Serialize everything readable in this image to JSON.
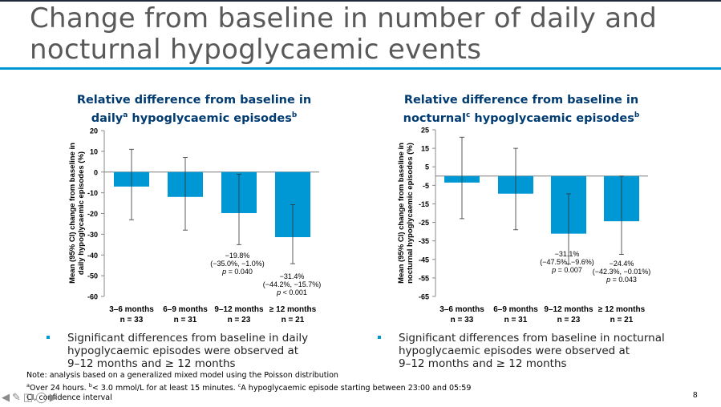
{
  "slide": {
    "title_line1": "Change from baseline in number of daily and",
    "title_line2": "nocturnal hypoglycaemic events",
    "page_number": "8",
    "colors": {
      "accent": "#0098d4",
      "title": "#595959",
      "chart_title": "#003b72"
    }
  },
  "charts": {
    "left": {
      "title_line1": "Relative difference from baseline in",
      "title_word": "daily",
      "title_sup1": "a",
      "title_rest": " hypoglycaemic episodes",
      "title_sup2": "b"
    },
    "right": {
      "title_line1": "Relative difference from baseline in",
      "title_word": "nocturnal",
      "title_sup1": "c",
      "title_rest": " hypoglycaemic episodes",
      "title_sup2": "b"
    }
  },
  "chart_data": [
    {
      "type": "bar",
      "title": "Relative difference from baseline in daily hypoglycaemic episodes",
      "ylabel_line1": "Mean (95% CI) change from baseline in",
      "ylabel_line2": "daily hypoglycaemic episodes (%)",
      "ylim": [
        -60,
        20
      ],
      "yticks": [
        "20",
        "10",
        "0",
        "-10",
        "-20",
        "-30",
        "-40",
        "-50",
        "-60"
      ],
      "categories": [
        "3–6 months",
        "6–9 months",
        "9–12 months",
        "≥ 12 months"
      ],
      "n_labels": [
        "n = 33",
        "n = 31",
        "n = 23",
        "n = 21"
      ],
      "values": [
        -7,
        -12,
        -19.8,
        -31.4
      ],
      "ci_low": [
        -23,
        -28,
        -35.0,
        -44.2
      ],
      "ci_high": [
        11,
        7,
        -1.0,
        -15.7
      ],
      "annotations": [
        null,
        null,
        {
          "value": "−19.8%",
          "ci": "(−35.0%, −1.0%)",
          "p_label": "p",
          "p_text": " = 0.040"
        },
        {
          "value": "−31.4%",
          "ci": "(−44.2%, −15.7%)",
          "p_label": "p",
          "p_text": " < 0.001"
        }
      ],
      "bar_color": "#0098d4",
      "grid": false
    },
    {
      "type": "bar",
      "title": "Relative difference from baseline in nocturnal hypoglycaemic episodes",
      "ylabel_line1": "Mean (95% CI) change from baseline in",
      "ylabel_line2": "nocturnal hypoglycaemic episodes (%)",
      "ylim": [
        -65,
        25
      ],
      "yticks": [
        "25",
        "15",
        "5",
        "-5",
        "-15",
        "-25",
        "-35",
        "-45",
        "-55",
        "-65"
      ],
      "categories": [
        "3–6 months",
        "6–9 months",
        "9–12 months",
        "≥ 12 months"
      ],
      "n_labels": [
        "n = 33",
        "n = 31",
        "n = 23",
        "n = 21"
      ],
      "values": [
        -3.5,
        -9.5,
        -31.1,
        -24.4
      ],
      "ci_low": [
        -23,
        -29,
        -47.5,
        -42.3
      ],
      "ci_high": [
        21,
        15,
        -9.6,
        -0.01
      ],
      "annotations": [
        null,
        null,
        {
          "value": "−31.1%",
          "ci": "(−47.5%, −9.6%)",
          "p_label": "p",
          "p_text": " = 0.007"
        },
        {
          "value": "−24.4%",
          "ci": "(−42.3%, −0.01%)",
          "p_label": "p",
          "p_text": " = 0.043"
        }
      ],
      "bar_color": "#0098d4",
      "grid": false
    }
  ],
  "bullets": {
    "left": [
      "Significant differences from baseline in daily",
      "hypoglycaemic episodes were observed at",
      "9–12 months and ≥ 12 months"
    ],
    "right": [
      "Significant differences from baseline in nocturnal",
      "hypoglycaemic episodes were observed at",
      "9–12 months and ≥ 12 months"
    ]
  },
  "notes": {
    "line1": "Note: analysis based on a generalized mixed model using the Poisson distribution",
    "line2_sup_a": "a",
    "line2_a": "Over 24 hours. ",
    "line2_sup_b": "b",
    "line2_b": "< 3.0 mmol/L for at least 15 minutes. ",
    "line2_sup_c": "c",
    "line2_c": "A hypoglycaemic episode starting between 23:00 and 05:59",
    "line3": "CI, confidence interval"
  },
  "nav": {
    "icons": [
      "back-arrow-icon",
      "pen-icon",
      "menu-icon",
      "zoom-icon",
      "forward-arrow-icon"
    ]
  }
}
